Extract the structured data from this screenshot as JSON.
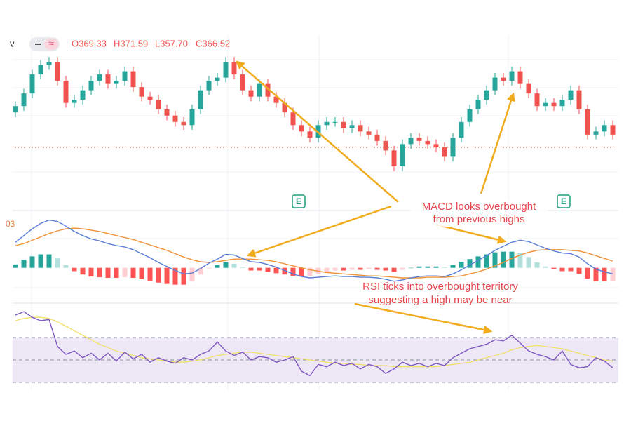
{
  "header": {
    "symbol_fragment": "v",
    "toggle": "≈",
    "ohlc": [
      "O369.33",
      "H371.59",
      "L357.70",
      "C366.52"
    ]
  },
  "macd_label": "03",
  "earnings_badges": [
    "E",
    "E"
  ],
  "annotations": [
    {
      "lines": [
        "MACD looks overbought",
        "from previous highs"
      ]
    },
    {
      "lines": [
        "RSI ticks into overbought territory",
        "suggesting a high may be near"
      ]
    }
  ],
  "chart_data": [
    {
      "type": "candlestick",
      "up_color": "#26a69a",
      "down_color": "#ef5350",
      "ylim": [
        335,
        376
      ],
      "price_line": 345,
      "price_line_color": "#e8813a",
      "open": [
        356,
        358,
        362,
        368,
        371,
        372,
        366,
        359,
        360,
        363,
        366,
        368,
        365,
        366,
        369,
        364,
        361,
        360,
        357,
        355,
        353,
        352,
        357,
        363,
        366,
        367,
        372,
        368,
        363,
        361,
        365,
        361,
        359,
        356,
        352,
        350,
        348,
        352,
        353,
        353,
        351,
        352,
        350,
        349,
        347,
        344,
        339,
        346,
        348,
        347,
        346,
        345,
        342,
        348,
        353,
        357,
        360,
        363,
        367,
        366,
        369,
        365,
        362,
        358,
        359,
        358,
        360,
        363,
        357,
        349,
        350,
        352
      ],
      "high": [
        359.5,
        363.5,
        369.5,
        372.5,
        373.5,
        373.5,
        367.5,
        361.5,
        364.5,
        367.5,
        369.5,
        369.5,
        367.5,
        370.5,
        370.5,
        365.5,
        362.5,
        361.5,
        358.5,
        356.5,
        354.5,
        358.5,
        364.5,
        367.5,
        368.5,
        373.5,
        373.5,
        369.5,
        364.5,
        366.5,
        366.5,
        362.5,
        360.5,
        357.5,
        353.5,
        351.5,
        353.5,
        354.5,
        354.5,
        354.5,
        353.5,
        353.5,
        351.5,
        350.5,
        348.5,
        345.5,
        347.5,
        349.5,
        349.5,
        348.5,
        347.5,
        346.5,
        349.5,
        354.5,
        358.5,
        361.5,
        364.5,
        368.5,
        368.5,
        370.5,
        370.5,
        366.5,
        363.5,
        360.5,
        360.5,
        361.5,
        364.5,
        364.5,
        358.5,
        351.5,
        353.5,
        353.5
      ],
      "low": [
        354.5,
        356.5,
        360.5,
        366.5,
        369.5,
        364.5,
        357.5,
        357.5,
        358.5,
        361.5,
        364.5,
        363.5,
        363.5,
        364.5,
        362.5,
        359.5,
        358.5,
        355.5,
        353.5,
        351.5,
        350.5,
        350.5,
        355.5,
        361.5,
        364.5,
        365.5,
        366.5,
        361.5,
        359.5,
        359.5,
        359.5,
        357.5,
        354.5,
        350.5,
        348.5,
        346.5,
        346.5,
        350.5,
        351.5,
        349.5,
        349.5,
        348.5,
        347.5,
        345.5,
        342.5,
        337.5,
        337.5,
        344.5,
        345.5,
        344.5,
        343.5,
        340.5,
        340.5,
        346.5,
        351.5,
        355.5,
        358.5,
        361.5,
        364.5,
        364.5,
        363.5,
        360.5,
        356.5,
        356.5,
        356.5,
        356.5,
        358.5,
        355.5,
        347.5,
        347.5,
        348.5,
        347.5
      ],
      "close": [
        358,
        362,
        368,
        371,
        372,
        366,
        359,
        360,
        363,
        366,
        368,
        365,
        366,
        369,
        364,
        361,
        360,
        357,
        355,
        353,
        352,
        357,
        363,
        366,
        367,
        372,
        368,
        363,
        361,
        365,
        361,
        359,
        356,
        352,
        350,
        348,
        352,
        353,
        353,
        351,
        352,
        350,
        349,
        347,
        344,
        339,
        346,
        348,
        347,
        346,
        345,
        342,
        348,
        353,
        357,
        360,
        363,
        367,
        366,
        369,
        365,
        362,
        358,
        359,
        358,
        360,
        363,
        357,
        349,
        350,
        352,
        349
      ]
    },
    {
      "type": "macd",
      "ylim": [
        -4,
        8
      ],
      "macd": {
        "color": "#5b7fd6",
        "values": [
          3.8,
          4.8,
          5.8,
          6.6,
          7.1,
          6.9,
          6.2,
          5.4,
          4.8,
          4.3,
          4.0,
          3.6,
          3.3,
          3.1,
          2.7,
          2.1,
          1.5,
          0.8,
          0.2,
          -0.4,
          -0.9,
          -0.8,
          -0.1,
          0.7,
          1.3,
          2.0,
          1.9,
          1.4,
          0.9,
          0.8,
          0.5,
          0.1,
          -0.4,
          -0.9,
          -1.3,
          -1.5,
          -1.4,
          -1.3,
          -1.2,
          -1.3,
          -1.3,
          -1.4,
          -1.4,
          -1.5,
          -1.7,
          -2.0,
          -1.8,
          -1.5,
          -1.3,
          -1.2,
          -1.2,
          -1.3,
          -0.9,
          -0.3,
          0.4,
          1.1,
          1.8,
          2.6,
          3.2,
          3.8,
          4.1,
          3.9,
          3.4,
          2.9,
          2.5,
          2.2,
          2.1,
          1.6,
          0.6,
          -0.2,
          -0.6,
          -0.9
        ]
      },
      "signal": {
        "color": "#f0923a",
        "values": [
          3.3,
          3.6,
          4.1,
          4.6,
          5.1,
          5.5,
          5.8,
          5.9,
          5.8,
          5.6,
          5.4,
          5.1,
          4.8,
          4.5,
          4.2,
          3.8,
          3.4,
          3.0,
          2.6,
          2.1,
          1.6,
          1.2,
          0.9,
          0.8,
          0.9,
          1.1,
          1.3,
          1.3,
          1.3,
          1.2,
          1.1,
          0.9,
          0.6,
          0.3,
          0.0,
          -0.3,
          -0.5,
          -0.7,
          -0.8,
          -0.9,
          -1.0,
          -1.1,
          -1.2,
          -1.2,
          -1.3,
          -1.4,
          -1.5,
          -1.5,
          -1.5,
          -1.4,
          -1.4,
          -1.4,
          -1.3,
          -1.2,
          -0.9,
          -0.6,
          -0.2,
          0.3,
          0.8,
          1.4,
          1.9,
          2.3,
          2.6,
          2.7,
          2.7,
          2.7,
          2.6,
          2.5,
          2.2,
          1.8,
          1.4,
          1.0
        ]
      },
      "histogram": {
        "colors": [
          "#26a69a",
          "#b2dfdb",
          "#ff5252",
          "#ffcdd2"
        ],
        "values": [
          0.5,
          1.2,
          1.7,
          2.0,
          2.0,
          1.4,
          0.4,
          -0.5,
          -1.0,
          -1.3,
          -1.4,
          -1.5,
          -1.5,
          -1.4,
          -1.5,
          -1.7,
          -1.9,
          -2.2,
          -2.4,
          -2.5,
          -2.5,
          -2.0,
          -1.0,
          -0.1,
          0.4,
          0.9,
          0.6,
          0.1,
          -0.4,
          -0.4,
          -0.6,
          -0.8,
          -1.0,
          -1.2,
          -1.3,
          -1.2,
          -0.9,
          -0.6,
          -0.4,
          -0.4,
          -0.3,
          -0.3,
          -0.2,
          -0.3,
          -0.4,
          -0.6,
          -0.3,
          0.0,
          0.2,
          0.2,
          0.2,
          0.1,
          0.4,
          0.9,
          1.3,
          1.7,
          2.0,
          2.3,
          2.4,
          2.4,
          2.2,
          1.6,
          0.8,
          0.2,
          -0.2,
          -0.5,
          -0.5,
          -0.9,
          -1.6,
          -2.0,
          -2.0,
          -1.9
        ]
      }
    },
    {
      "type": "rsi",
      "ylim": [
        25,
        95
      ],
      "bands": [
        30,
        50,
        70
      ],
      "band_fill": "#ede7f6",
      "rsi": {
        "color": "#7e57c2",
        "values": [
          90,
          93,
          88,
          85,
          86,
          62,
          55,
          58,
          52,
          56,
          50,
          56,
          49,
          57,
          51,
          55,
          48,
          52,
          49,
          47,
          52,
          50,
          55,
          58,
          66,
          58,
          54,
          57,
          50,
          53,
          52,
          48,
          50,
          53,
          40,
          36,
          46,
          44,
          48,
          45,
          47,
          42,
          46,
          44,
          38,
          42,
          48,
          45,
          47,
          44,
          47,
          45,
          52,
          56,
          60,
          62,
          64,
          68,
          67,
          72,
          65,
          58,
          55,
          53,
          50,
          58,
          46,
          43,
          44,
          52,
          49,
          43
        ]
      },
      "ma": {
        "color": "#f2e06a",
        "values": [
          85,
          87,
          88,
          88,
          87,
          84,
          80,
          76,
          72,
          68,
          64,
          61,
          58,
          56,
          54,
          52,
          51,
          50,
          49,
          48,
          48,
          49,
          50,
          52,
          54,
          55,
          56,
          57,
          57,
          56,
          55,
          54,
          53,
          52,
          51,
          50,
          49,
          48,
          47,
          47,
          46,
          46,
          45,
          45,
          45,
          44,
          44,
          44,
          44,
          44,
          44,
          45,
          46,
          47,
          48,
          50,
          52,
          54,
          56,
          59,
          61,
          62,
          63,
          62,
          61,
          60,
          58,
          56,
          54,
          52,
          50,
          49
        ]
      }
    }
  ]
}
